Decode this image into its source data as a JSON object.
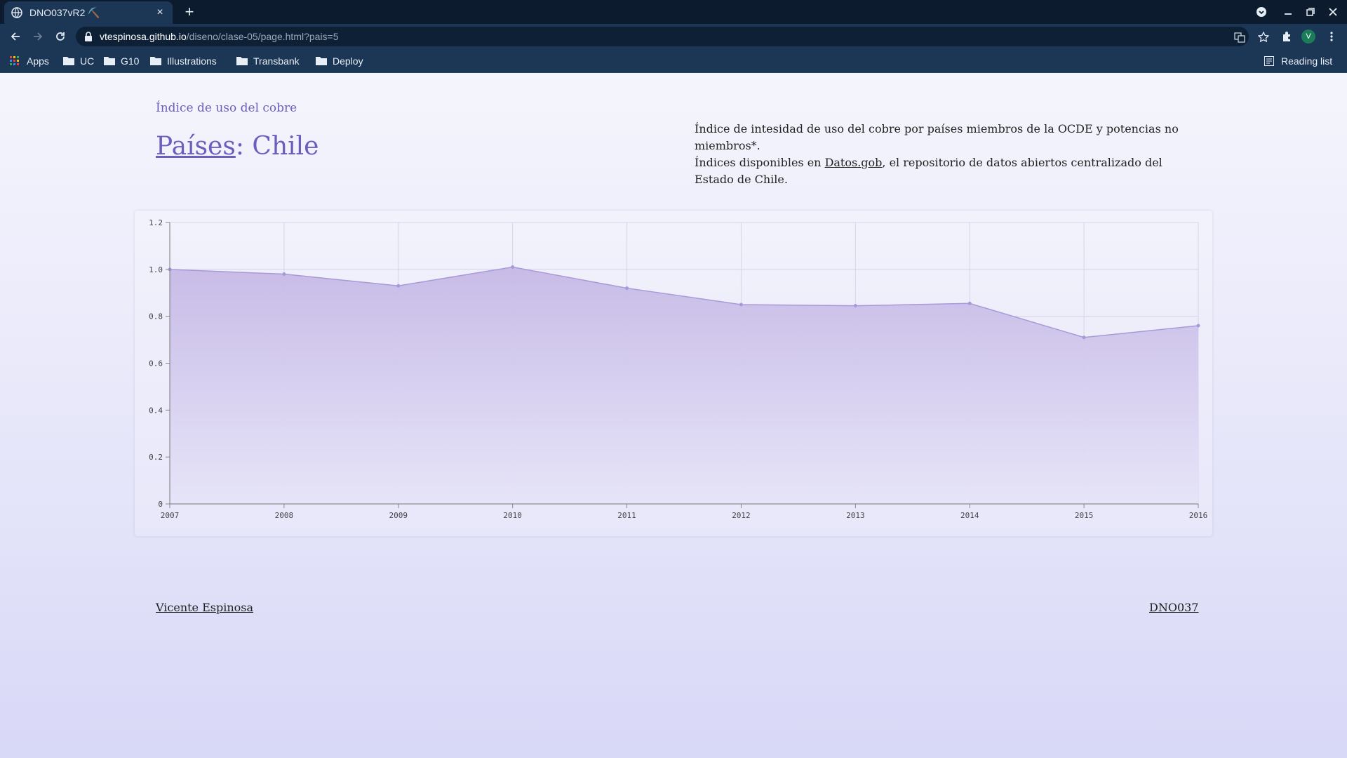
{
  "browser": {
    "tab_title": "DNO037vR2 ⛏️",
    "url_host": "vtespinosa.github.io",
    "url_path": "/diseno/clase-05/page.html?pais=5",
    "profile_initial": "V",
    "bookmarks": [
      "Apps",
      "UC",
      "G10",
      "Illustrations",
      "Transbank",
      "Deploy"
    ],
    "reading_list": "Reading list"
  },
  "page": {
    "kicker": "Índice de uso del cobre",
    "heading_link": "Países",
    "heading_rest": ": Chile",
    "description_line1": "Índice de intesidad de uso del cobre por países miembros de la OCDE y potencias no miembros*.",
    "description_line2_pre": "Índices disponibles en ",
    "description_link": "Datos.gob",
    "description_line2_post": ", el repositorio de datos abiertos centralizado del Estado de Chile.",
    "footer_author": "Vicente Espinosa",
    "footer_code": "DNO037"
  },
  "chart_data": {
    "type": "area",
    "x": [
      "2007",
      "2008",
      "2009",
      "2010",
      "2011",
      "2012",
      "2013",
      "2014",
      "2015",
      "2016"
    ],
    "values": [
      1.0,
      0.98,
      0.93,
      1.01,
      0.92,
      0.85,
      0.845,
      0.855,
      0.71,
      0.76
    ],
    "yticks": [
      "0",
      "0.2",
      "0.4",
      "0.6",
      "0.8",
      "1.0",
      "1.2"
    ],
    "ylim": [
      0,
      1.2
    ],
    "title": "",
    "xlabel": "",
    "ylabel": "",
    "grid": true,
    "colors": {
      "line": "#a89ad8",
      "fill_top": "#c6b9e6",
      "fill_bottom": "#e6e4f8"
    }
  }
}
